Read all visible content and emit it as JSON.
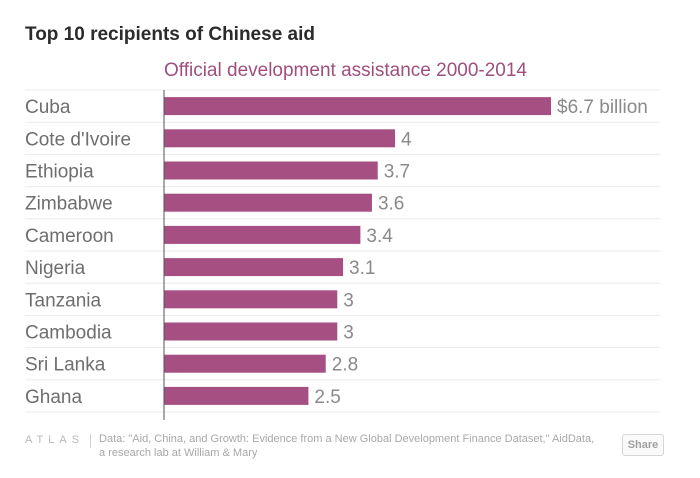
{
  "chart_data": {
    "type": "bar",
    "orientation": "horizontal",
    "title": "Top 10 recipients of Chinese aid",
    "subtitle": "Official development assistance 2000-2014",
    "categories": [
      "Cuba",
      "Cote d'Ivoire",
      "Ethiopia",
      "Zimbabwe",
      "Cameroon",
      "Nigeria",
      "Tanzania",
      "Cambodia",
      "Sri Lanka",
      "Ghana"
    ],
    "values": [
      6.7,
      4,
      3.7,
      3.6,
      3.4,
      3.1,
      3,
      3,
      2.8,
      2.5
    ],
    "value_labels": [
      "$6.7 billion",
      "4",
      "3.7",
      "3.6",
      "3.4",
      "3.1",
      "3",
      "3",
      "2.8",
      "2.5"
    ],
    "xlim": [
      0,
      6.7
    ],
    "bar_color": "#a64f82",
    "grid": true
  },
  "footer": {
    "logo": "ATLAS",
    "source": "Data: \"Aid, China, and Growth: Evidence from a New Global Development Finance Dataset,\" AidData, a research lab at William & Mary",
    "share_label": "Share"
  }
}
